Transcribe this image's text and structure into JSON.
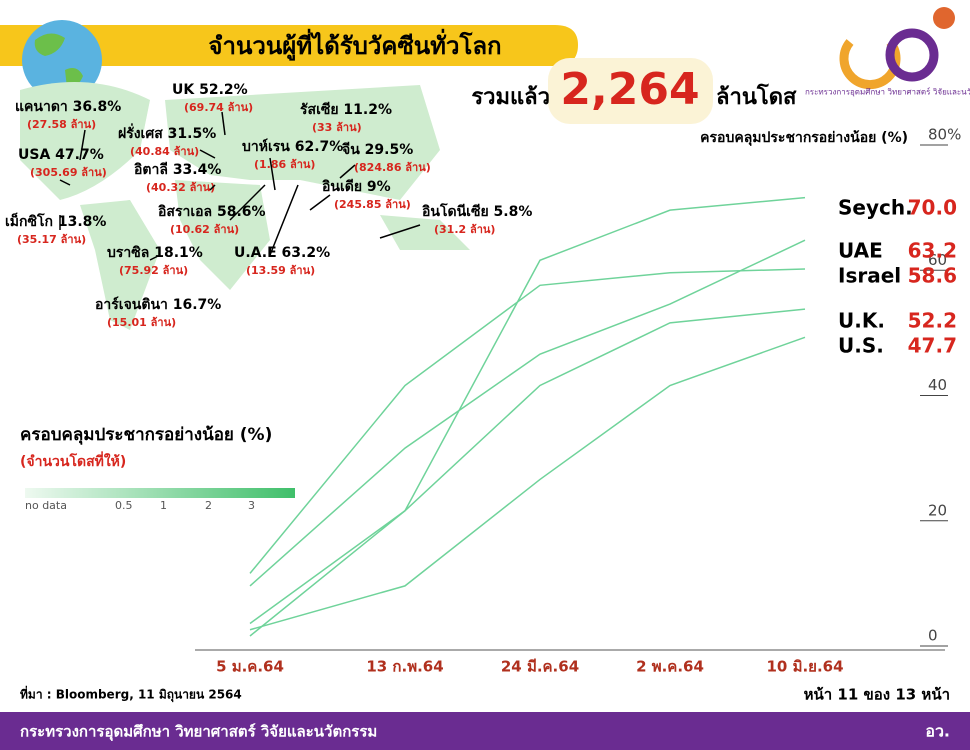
{
  "header": {
    "title": "จำนวนผู้ที่ได้รับวัคซีนทั่วโลก",
    "total_prefix": "รวมแล้ว",
    "total": "2,264",
    "total_unit": "ล้านโดส",
    "logo": "กระทรวงการอุดมศึกษา วิทยาศาสตร์ วิจัยและนวัตกรรม"
  },
  "map": {
    "labels": [
      {
        "label": "UK 52.2%",
        "doses": "(69.74 ล้าน)"
      },
      {
        "label": "แคนาดา 36.8%",
        "doses": "(27.58 ล้าน)"
      },
      {
        "label": "ฝรั่งเศส 31.5%",
        "doses": "(40.84 ล้าน)"
      },
      {
        "label": "USA 47.7%",
        "doses": "(305.69 ล้าน)"
      },
      {
        "label": "อิตาลี 33.4%",
        "doses": "(40.32 ล้าน)"
      },
      {
        "label": "บาห์เรน 62.7%",
        "doses": "(1.86 ล้าน)"
      },
      {
        "label": "รัสเซีย 11.2%",
        "doses": "(33 ล้าน)"
      },
      {
        "label": "จีน 29.5%",
        "doses": "(824.86 ล้าน)"
      },
      {
        "label": "อินเดีย 9%",
        "doses": "(245.85 ล้าน)"
      },
      {
        "label": "เม็กซิโก 13.8%",
        "doses": "(35.17 ล้าน)"
      },
      {
        "label": "อิสราเอล 58.6%",
        "doses": "(10.62 ล้าน)"
      },
      {
        "label": "อินโดนีเซีย 5.8%",
        "doses": "(31.2 ล้าน)"
      },
      {
        "label": "บราซิล 18.1%",
        "doses": "(75.92 ล้าน)"
      },
      {
        "label": "U.A.E 63.2%",
        "doses": "(13.59 ล้าน)"
      },
      {
        "label": "อาร์เจนตินา 16.7%",
        "doses": "(15.01 ล้าน)"
      }
    ],
    "legend_title": "ครอบคลุมประชากรอย่างน้อย (%)",
    "legend_subtitle": "(จำนวนโดสที่ให้)",
    "legend_labels": [
      "no data",
      "0.5",
      "1",
      "2",
      "3"
    ]
  },
  "chart_data": {
    "type": "line",
    "title": "ครอบคลุมประชากรอย่างน้อย (%)",
    "categories": [
      "5 ม.ค.64",
      "13 ก.พ.64",
      "24 มี.ค.64",
      "2 พ.ค.64",
      "10 มิ.ย.64"
    ],
    "ylim": [
      0,
      80
    ],
    "yticks": [
      0,
      20,
      40,
      60,
      {
        "value": 80,
        "label": "80%"
      }
    ],
    "series": [
      {
        "name": "Seych.",
        "color": "#6fd39a",
        "values": [
          0,
          20,
          60,
          68,
          70
        ],
        "value_labels": [
          null,
          null,
          null,
          null,
          "70.0"
        ]
      },
      {
        "name": "UAE",
        "color": "#6fd39a",
        "values": [
          8,
          30,
          45,
          53,
          63.2
        ]
      },
      {
        "name": "Israel",
        "color": "#6fd39a",
        "values": [
          10,
          40,
          56,
          58,
          58.6
        ]
      },
      {
        "name": "U.K.",
        "color": "#6fd39a",
        "values": [
          2,
          20,
          40,
          50,
          52.2
        ]
      },
      {
        "name": "U.S.",
        "color": "#6fd39a",
        "values": [
          1,
          8,
          25,
          40,
          47.7
        ]
      }
    ]
  },
  "footer": {
    "source": "ที่มา : Bloomberg, 11 มิถุนายน 2564",
    "page": "หน้า 11 ของ 13 หน้า",
    "ministry": "กระทรวงการอุดมศึกษา วิทยาศาสตร์ วิจัยและนวัตกรรม",
    "abbr": "อว."
  }
}
